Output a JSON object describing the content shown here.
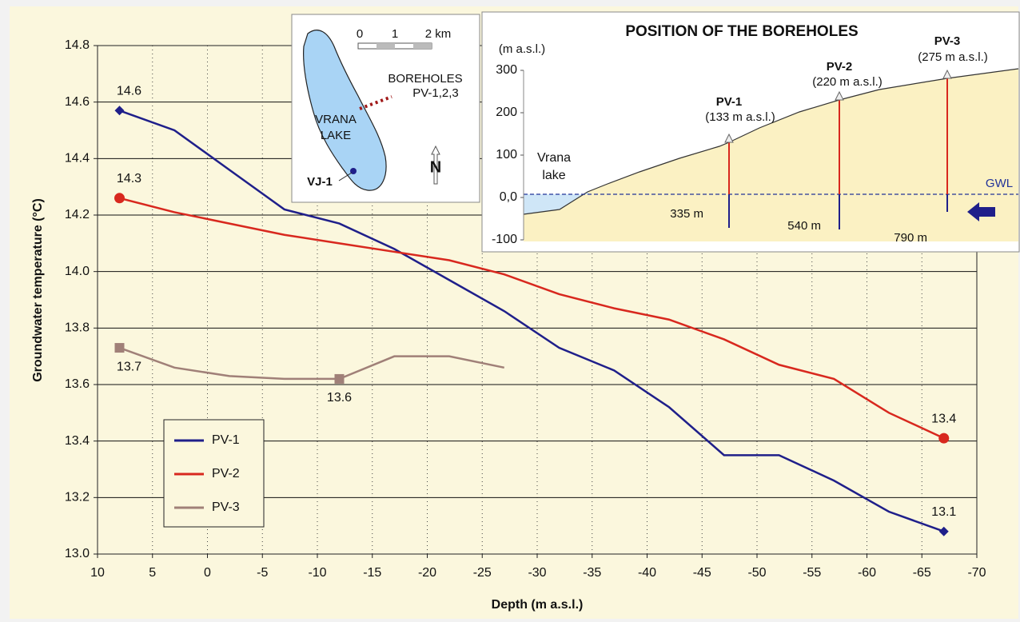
{
  "chart_data": {
    "type": "line",
    "x_label": "Depth (m a.s.l.)",
    "y_label": "Groundwater temperature (°C)",
    "x": [
      8,
      3,
      -2,
      -7,
      -12,
      -17,
      -22,
      -27,
      -32,
      -37,
      -42,
      -47,
      -52,
      -57,
      -62,
      -67
    ],
    "xlim": [
      10,
      -70
    ],
    "xticks": [
      10,
      5,
      0,
      -5,
      -10,
      -15,
      -20,
      -25,
      -30,
      -35,
      -40,
      -45,
      -50,
      -55,
      -60,
      -65,
      -70
    ],
    "ylim": [
      13.0,
      14.8
    ],
    "yticks": [
      {
        "value": 13.0,
        "label": "13.0"
      },
      13.2,
      13.4,
      13.6,
      13.8,
      {
        "value": 14.0,
        "label": "14.0"
      },
      14.2,
      14.4,
      14.6,
      14.8
    ],
    "grid": true,
    "series": [
      {
        "name": "PV-1",
        "color": "#1f1f8a",
        "marker": "diamond",
        "values": [
          14.57,
          14.5,
          14.36,
          14.22,
          14.17,
          14.08,
          13.97,
          13.86,
          13.73,
          13.65,
          13.52,
          13.35,
          13.35,
          13.26,
          13.15,
          13.08
        ],
        "value_labels": [
          "14.6",
          null,
          null,
          null,
          null,
          null,
          null,
          null,
          null,
          null,
          null,
          null,
          null,
          null,
          null,
          "13.1"
        ]
      },
      {
        "name": "PV-2",
        "color": "#d8281e",
        "marker": "circle",
        "values": [
          14.26,
          14.21,
          14.17,
          14.13,
          14.1,
          14.07,
          14.04,
          13.99,
          13.92,
          13.87,
          13.83,
          13.76,
          13.67,
          13.62,
          13.5,
          13.41
        ],
        "value_labels": [
          "14.3",
          null,
          null,
          null,
          null,
          null,
          null,
          null,
          null,
          null,
          null,
          null,
          null,
          null,
          null,
          "13.4"
        ]
      },
      {
        "name": "PV-3",
        "color": "#a08078",
        "marker": "square",
        "values": [
          13.73,
          13.66,
          13.63,
          13.62,
          13.62,
          13.7,
          13.7,
          13.66,
          null,
          null,
          null,
          null,
          null,
          null,
          null,
          null
        ],
        "value_labels": [
          "13.7",
          null,
          null,
          null,
          "13.6",
          null,
          null,
          null,
          null,
          null,
          null,
          null,
          null,
          null,
          null,
          null
        ]
      }
    ]
  },
  "map_inset": {
    "scale_labels": [
      "0",
      "1",
      "2 km"
    ],
    "boreholes_label": [
      "BOREHOLES",
      "PV-1,2,3"
    ],
    "lake_label": [
      "VRANA",
      "LAKE"
    ],
    "well_label": "VJ-1",
    "north": "N"
  },
  "section_inset": {
    "title": "POSITION OF THE BOREHOLES",
    "y_unit": "(m a.s.l.)",
    "ylim": [
      -100,
      300
    ],
    "yticks": [
      300,
      200,
      100,
      {
        "value": 0,
        "label": "0,0"
      },
      -100
    ],
    "lake_label": [
      "Vrana",
      "lake"
    ],
    "gwl": "GWL",
    "boreholes": [
      {
        "name": "PV-1",
        "elevation": "(133 m a.s.l.)",
        "distance": "335 m"
      },
      {
        "name": "PV-2",
        "elevation": "(220 m a.s.l.)",
        "distance": "540 m"
      },
      {
        "name": "PV-3",
        "elevation": "(275 m a.s.l.)",
        "distance": "790 m"
      }
    ]
  }
}
